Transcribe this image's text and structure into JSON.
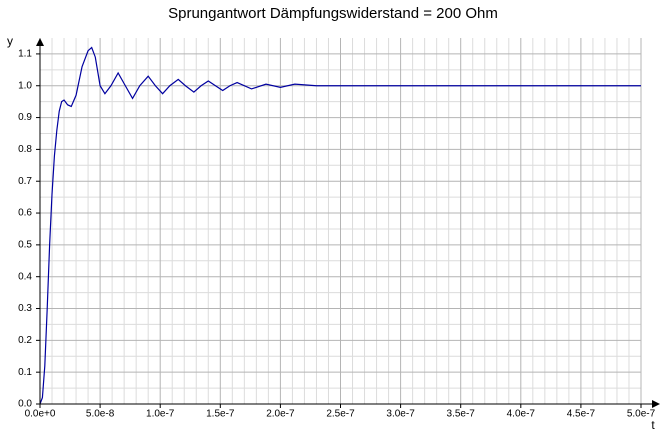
{
  "chart_data": {
    "type": "line",
    "title": "Sprungantwort Dämpfungswiderstand = 200 Ohm",
    "x_label": "t",
    "y_label": "y",
    "x": [
      0,
      2e-09,
      4e-09,
      6e-09,
      8e-09,
      1e-08,
      1.2e-08,
      1.4e-08,
      1.6e-08,
      1.8e-08,
      2e-08,
      2.3e-08,
      2.6e-08,
      3e-08,
      3.5e-08,
      4e-08,
      4.3e-08,
      4.6e-08,
      5e-08,
      5.4e-08,
      5.9e-08,
      6.5e-08,
      7.1e-08,
      7.7e-08,
      8.3e-08,
      9e-08,
      9.6e-08,
      1.02e-07,
      1.08e-07,
      1.15e-07,
      1.21e-07,
      1.28e-07,
      1.34e-07,
      1.4e-07,
      1.46e-07,
      1.52e-07,
      1.58e-07,
      1.64e-07,
      1.76e-07,
      1.88e-07,
      2e-07,
      2.12e-07,
      2.3e-07,
      5e-07
    ],
    "series": [
      {
        "name": "y",
        "color": "#0000a0",
        "values": [
          0,
          0.02,
          0.12,
          0.3,
          0.5,
          0.66,
          0.78,
          0.86,
          0.92,
          0.95,
          0.955,
          0.94,
          0.935,
          0.97,
          1.06,
          1.11,
          1.12,
          1.09,
          1.0,
          0.975,
          1.0,
          1.04,
          1.0,
          0.96,
          1.0,
          1.03,
          1.0,
          0.975,
          1.0,
          1.02,
          1.0,
          0.98,
          1.0,
          1.015,
          1.0,
          0.985,
          1.0,
          1.01,
          0.99,
          1.005,
          0.995,
          1.005,
          1.0,
          1.0
        ]
      }
    ],
    "xlim": [
      0,
      5e-07
    ],
    "ylim": [
      0,
      1.15
    ],
    "xticks": [
      {
        "value": 0,
        "label": "0.0e+0"
      },
      {
        "value": 5e-08,
        "label": "5.0e-8"
      },
      {
        "value": 1e-07,
        "label": "1.0e-7"
      },
      {
        "value": 1.5e-07,
        "label": "1.5e-7"
      },
      {
        "value": 2e-07,
        "label": "2.0e-7"
      },
      {
        "value": 2.5e-07,
        "label": "2.5e-7"
      },
      {
        "value": 3e-07,
        "label": "3.0e-7"
      },
      {
        "value": 3.5e-07,
        "label": "3.5e-7"
      },
      {
        "value": 4e-07,
        "label": "4.0e-7"
      },
      {
        "value": 4.5e-07,
        "label": "4.5e-7"
      },
      {
        "value": 5e-07,
        "label": "5.0e-7"
      }
    ],
    "yticks": [
      {
        "value": 0,
        "label": "0.0"
      },
      0.1,
      0.2,
      0.3,
      0.4,
      0.5,
      0.6,
      0.7,
      0.8,
      0.9,
      {
        "value": 1,
        "label": "1.0"
      },
      1.1
    ],
    "grid": true
  }
}
